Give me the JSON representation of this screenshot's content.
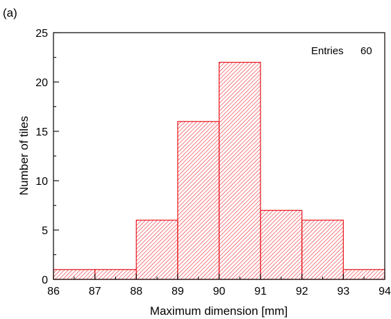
{
  "panel_label": "(a)",
  "chart_data": {
    "type": "bar",
    "title": "",
    "xlabel": "Maximum dimension [mm]",
    "ylabel": "Number of tiles",
    "xlim": [
      86,
      94
    ],
    "ylim": [
      0,
      25
    ],
    "bin_edges": [
      86,
      87,
      88,
      89,
      90,
      91,
      92,
      93,
      94
    ],
    "values": [
      1,
      1,
      6,
      16,
      22,
      7,
      6,
      1
    ],
    "x_ticks": [
      "86",
      "87",
      "88",
      "89",
      "90",
      "91",
      "92",
      "93",
      "94"
    ],
    "y_ticks": [
      "0",
      "5",
      "10",
      "15",
      "20",
      "25"
    ],
    "grid": false,
    "fill": "hatched",
    "bar_color": "#e8141b",
    "annotation": {
      "label": "Entries",
      "value": "60"
    }
  }
}
